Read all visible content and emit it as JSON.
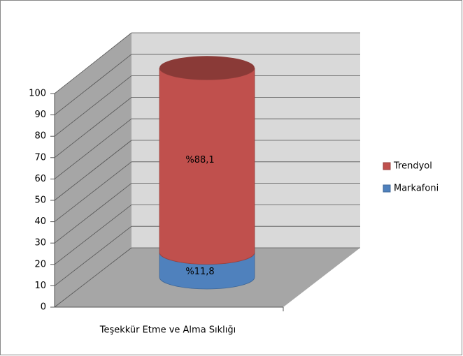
{
  "chart_data": {
    "type": "cylinder-stacked",
    "categories": [
      "Teşekkür Etme ve Alma Sıklığı"
    ],
    "series": [
      {
        "name": "Markafoni",
        "color": "#4f81bd",
        "values": [
          11.8
        ],
        "value_labels": [
          "%11,8"
        ]
      },
      {
        "name": "Trendyol",
        "color": "#c0504d",
        "values": [
          88.1
        ],
        "value_labels": [
          "%88,1"
        ]
      }
    ],
    "ylim": [
      0,
      100
    ],
    "yticks": [
      0,
      10,
      20,
      30,
      40,
      50,
      60,
      70,
      80,
      90,
      100
    ],
    "grid": true,
    "legend": "right"
  }
}
